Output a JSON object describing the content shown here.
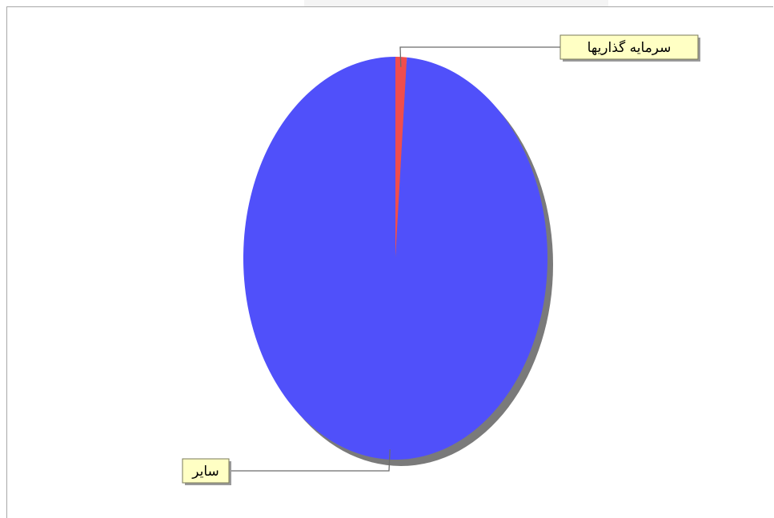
{
  "chart_data": {
    "type": "pie",
    "slices": [
      {
        "label": "سرمایه گذاریها",
        "value": 1.2,
        "color": "#f04d4d"
      },
      {
        "label": "سایر",
        "value": 98.8,
        "color": "#5050fa"
      }
    ],
    "start_angle_deg": 0,
    "shadow_color": "#7a7a7a",
    "label_background": "#ffffc4"
  }
}
